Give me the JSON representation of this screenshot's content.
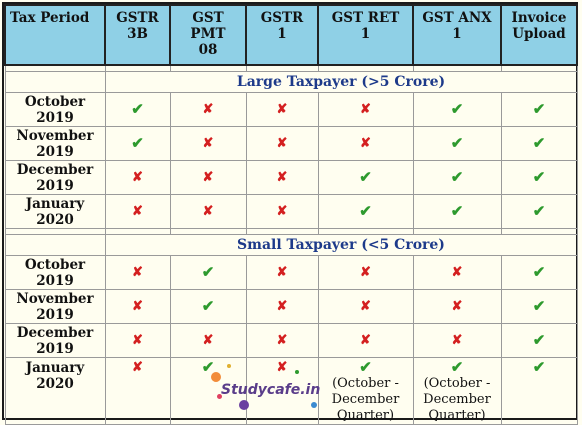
{
  "headers": {
    "tax_period": "Tax Period",
    "gstr3b": [
      "GSTR",
      "3B"
    ],
    "gst_pmt": [
      "GST PMT",
      "08"
    ],
    "gstr1": [
      "GSTR",
      "1"
    ],
    "gst_ret": [
      "GST RET",
      "1"
    ],
    "gst_anx": [
      "GST ANX",
      "1"
    ],
    "invoice": [
      "Invoice",
      "Upload"
    ]
  },
  "sections": {
    "large": "Large Taxpayer (>5 Crore)",
    "small": "Small Taxpayer (<5 Crore)"
  },
  "large_rows": [
    {
      "period": [
        "October",
        "2019"
      ],
      "cells": [
        "tick",
        "cross",
        "cross",
        "cross",
        "tick",
        "tick"
      ]
    },
    {
      "period": [
        "November",
        "2019"
      ],
      "cells": [
        "tick",
        "cross",
        "cross",
        "cross",
        "tick",
        "tick"
      ]
    },
    {
      "period": [
        "December",
        "2019"
      ],
      "cells": [
        "cross",
        "cross",
        "cross",
        "tick",
        "tick",
        "tick"
      ]
    },
    {
      "period": [
        "January",
        "2020"
      ],
      "cells": [
        "cross",
        "cross",
        "cross",
        "tick",
        "tick",
        "tick"
      ]
    }
  ],
  "small_rows": [
    {
      "period": [
        "October",
        "2019"
      ],
      "cells": [
        "cross",
        "tick",
        "cross",
        "cross",
        "cross",
        "tick"
      ]
    },
    {
      "period": [
        "November",
        "2019"
      ],
      "cells": [
        "cross",
        "tick",
        "cross",
        "cross",
        "cross",
        "tick"
      ]
    },
    {
      "period": [
        "December",
        "2019"
      ],
      "cells": [
        "cross",
        "cross",
        "cross",
        "cross",
        "cross",
        "tick"
      ]
    },
    {
      "period": [
        "January",
        "2020"
      ],
      "cells": [
        "cross",
        "tick",
        "cross",
        "tick",
        "tick",
        "tick"
      ]
    }
  ],
  "last_row_notes": {
    "gst_ret": [
      "(October -",
      "December",
      "Quarter)"
    ],
    "gst_anx": [
      "(October -",
      "December",
      "Quarter)"
    ]
  },
  "symbols": {
    "tick": "✔",
    "cross": "✘"
  },
  "colors": {
    "header_bg": "#8fd0e6",
    "tick": "#2e9a2e",
    "cross": "#d42020",
    "section_text": "#1d3a8a"
  },
  "watermark": "Studycafe.in"
}
